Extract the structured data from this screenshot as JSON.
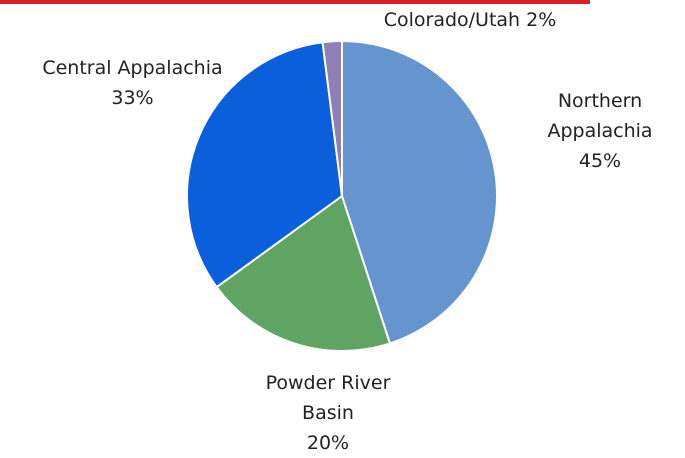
{
  "chart_data": {
    "type": "pie",
    "categories": [
      "Northern Appalachia",
      "Powder River Basin",
      "Central Appalachia",
      "Colorado/Utah"
    ],
    "values": [
      45,
      20,
      33,
      2
    ],
    "value_labels": [
      "45%",
      "20%",
      "33%",
      "2%"
    ],
    "colors": [
      "#6594cf",
      "#5fa463",
      "#0b5fdc",
      "#8e7fb5"
    ]
  }
}
